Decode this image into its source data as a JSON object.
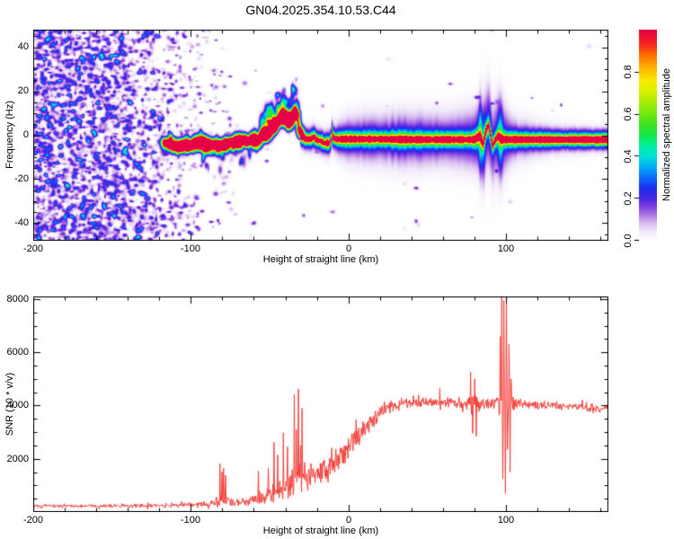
{
  "title": "GN04.2025.354.10.53.C44",
  "colors": {
    "background": "#ffffff",
    "axis": "#000000",
    "snr_line": "#f2403a"
  },
  "top_chart": {
    "ylabel": "Frequency (Hz)",
    "xlabel": "Height of straight line (km)",
    "xtick_labels": [
      "-200",
      "-100",
      "0",
      "100"
    ],
    "ytick_labels": [
      "40",
      "20",
      "0",
      "-20",
      "-40"
    ]
  },
  "colorbar": {
    "label": "Normalized spectral amplitude",
    "tick_labels": [
      "0.0",
      "0.2",
      "0.4",
      "0.6",
      "0.8"
    ]
  },
  "bottom_chart": {
    "ylabel": "SNR (10 * v/v)",
    "xlabel": "Height of straight line (km)",
    "xtick_labels": [
      "-200",
      "-100",
      "0",
      "100"
    ],
    "ytick_labels": [
      "8000",
      "6000",
      "4000",
      "2000"
    ]
  },
  "chart_data": [
    {
      "type": "heatmap",
      "title": "GN04.2025.354.10.53.C44",
      "xlabel": "Height of straight line (km)",
      "ylabel": "Frequency (Hz)",
      "xlim": [
        -200,
        165
      ],
      "ylim": [
        -48,
        48
      ],
      "xticks": [
        -200,
        -100,
        0,
        100
      ],
      "xminor": 20,
      "yticks": [
        -40,
        -20,
        0,
        20,
        40
      ],
      "yminor": 5,
      "grid": false,
      "colorbar": {
        "label": "Normalized spectral amplitude",
        "ticks": [
          0.0,
          0.2,
          0.4,
          0.6,
          0.8
        ],
        "range": [
          0,
          1
        ],
        "position": "right"
      },
      "colormap_stops": [
        [
          0.0,
          "#ffffff"
        ],
        [
          0.04,
          "#f2e9fa"
        ],
        [
          0.08,
          "#d8bef0"
        ],
        [
          0.12,
          "#af78e4"
        ],
        [
          0.16,
          "#803ee0"
        ],
        [
          0.2,
          "#4826e2"
        ],
        [
          0.25,
          "#1c30f0"
        ],
        [
          0.3,
          "#0a6efa"
        ],
        [
          0.35,
          "#00aff5"
        ],
        [
          0.4,
          "#00e1d7"
        ],
        [
          0.45,
          "#00f0a0"
        ],
        [
          0.5,
          "#14e646"
        ],
        [
          0.55,
          "#3ce11e"
        ],
        [
          0.62,
          "#82eb0a"
        ],
        [
          0.7,
          "#d2f000"
        ],
        [
          0.76,
          "#faeb00"
        ],
        [
          0.82,
          "#ffb400"
        ],
        [
          0.88,
          "#ff6e00"
        ],
        [
          0.93,
          "#f52820"
        ],
        [
          1.0,
          "#e60046"
        ]
      ],
      "noise_density": [
        [
          -200,
          0.95
        ],
        [
          -150,
          0.9
        ],
        [
          -135,
          0.7
        ],
        [
          -120,
          0.42
        ],
        [
          -105,
          0.26
        ],
        [
          -92,
          0.13
        ],
        [
          -80,
          0.06
        ],
        [
          -68,
          0.025
        ],
        [
          -55,
          0.012
        ],
        [
          -40,
          0.006
        ],
        [
          165,
          0.003
        ]
      ],
      "trace_center": [
        [
          -120,
          -4
        ],
        [
          -113,
          -3.5
        ],
        [
          -106,
          -5
        ],
        [
          -100,
          -4
        ],
        [
          -94,
          -3
        ],
        [
          -88,
          -4.5
        ],
        [
          -82,
          -5
        ],
        [
          -76,
          -3.5
        ],
        [
          -70,
          -3
        ],
        [
          -64,
          -2.5
        ],
        [
          -58,
          -1.5
        ],
        [
          -54,
          -0.5
        ],
        [
          -50,
          2
        ],
        [
          -46,
          5
        ],
        [
          -43,
          7.5
        ],
        [
          -40,
          9
        ],
        [
          -38,
          5
        ],
        [
          -36,
          9
        ],
        [
          -34,
          12
        ],
        [
          -32.5,
          7
        ],
        [
          -31,
          1.5
        ],
        [
          -30,
          -0.5
        ],
        [
          -27,
          -1.8
        ],
        [
          -24,
          -1.8
        ],
        [
          -22,
          -0.8
        ],
        [
          -20,
          -2.2
        ],
        [
          -17,
          -2.8
        ],
        [
          -15.5,
          -3.6
        ],
        [
          -12,
          -3.6
        ],
        [
          -11,
          -1.8
        ],
        [
          -10.4,
          1.4
        ],
        [
          -9.8,
          -0.8
        ],
        [
          -8,
          -1.8
        ],
        [
          0,
          -1.8
        ],
        [
          20,
          -1.8
        ],
        [
          40,
          -2
        ],
        [
          60,
          -2
        ],
        [
          80,
          -2
        ],
        [
          83.5,
          -0.3
        ],
        [
          85.5,
          -4
        ],
        [
          87.5,
          2.6
        ],
        [
          89,
          4.6
        ],
        [
          90.5,
          -0.8
        ],
        [
          91.5,
          -5
        ],
        [
          93,
          -2.4
        ],
        [
          95,
          -0.4
        ],
        [
          97,
          -1.8
        ],
        [
          100,
          -2
        ],
        [
          120,
          -2
        ],
        [
          140,
          -2
        ],
        [
          165,
          -2
        ]
      ],
      "trace_amp": [
        [
          -121,
          0
        ],
        [
          -116,
          0.3
        ],
        [
          -110,
          0.5
        ],
        [
          -100,
          0.52
        ],
        [
          -90,
          0.55
        ],
        [
          -80,
          0.55
        ],
        [
          -70,
          0.5
        ],
        [
          -60,
          0.52
        ],
        [
          -52,
          0.55
        ],
        [
          -45,
          0.58
        ],
        [
          -38,
          0.55
        ],
        [
          -33,
          0.5
        ],
        [
          -30,
          0.5
        ]
      ],
      "core_sigma_hz": 1.15,
      "mid_sigma_hz": 2.6,
      "mid_amp": 0.45,
      "halo_sigma": [
        [
          -30,
          3.5
        ],
        [
          -20,
          4
        ],
        [
          -10,
          4.5
        ],
        [
          0,
          6.5
        ],
        [
          30,
          7.5
        ],
        [
          60,
          7.5
        ],
        [
          80,
          8.5
        ],
        [
          88,
          11
        ],
        [
          96,
          11
        ],
        [
          105,
          6.5
        ],
        [
          125,
          4.5
        ],
        [
          145,
          3.8
        ],
        [
          165,
          3.2
        ]
      ],
      "halo_amp": [
        [
          -30,
          0.15
        ],
        [
          -15,
          0.13
        ],
        [
          -5,
          0.18
        ],
        [
          0,
          0.2
        ],
        [
          40,
          0.22
        ],
        [
          70,
          0.18
        ],
        [
          84,
          0.26
        ],
        [
          96,
          0.24
        ],
        [
          110,
          0.15
        ],
        [
          140,
          0.11
        ],
        [
          165,
          0.09
        ]
      ]
    },
    {
      "type": "line",
      "xlabel": "Height of straight line (km)",
      "ylabel": "SNR (10 * v/v)",
      "xlim": [
        -200,
        165
      ],
      "ylim": [
        0,
        8100
      ],
      "xticks": [
        -200,
        -100,
        0,
        100
      ],
      "xminor": 20,
      "yticks": [
        2000,
        4000,
        6000,
        8000
      ],
      "yminor": 500,
      "grid": false,
      "line_color": "#f2403a",
      "sample_step": 0.33,
      "base_points": [
        [
          -200,
          230
        ],
        [
          -160,
          235
        ],
        [
          -130,
          240
        ],
        [
          -110,
          255
        ],
        [
          -100,
          280
        ],
        [
          -90,
          300
        ],
        [
          -84,
          340
        ],
        [
          -81,
          520
        ],
        [
          -79,
          560
        ],
        [
          -76,
          420
        ],
        [
          -72,
          360
        ],
        [
          -68,
          380
        ],
        [
          -64,
          420
        ],
        [
          -60,
          480
        ],
        [
          -56,
          560
        ],
        [
          -52,
          620
        ],
        [
          -48,
          700
        ],
        [
          -44,
          800
        ],
        [
          -40,
          950
        ],
        [
          -36,
          1100
        ],
        [
          -33,
          1250
        ],
        [
          -30,
          1350
        ],
        [
          -27,
          1380
        ],
        [
          -24,
          1400
        ],
        [
          -21,
          1450
        ],
        [
          -18,
          1500
        ],
        [
          -15,
          1550
        ],
        [
          -12,
          1650
        ],
        [
          -9,
          1800
        ],
        [
          -6,
          2000
        ],
        [
          -3,
          2200
        ],
        [
          0,
          2400
        ],
        [
          3,
          2650
        ],
        [
          6,
          2850
        ],
        [
          9,
          3050
        ],
        [
          12,
          3250
        ],
        [
          15,
          3450
        ],
        [
          18,
          3600
        ],
        [
          21,
          3750
        ],
        [
          24,
          3850
        ],
        [
          27,
          3950
        ],
        [
          30,
          4000
        ],
        [
          35,
          4050
        ],
        [
          40,
          4080
        ],
        [
          45,
          4100
        ],
        [
          50,
          4120
        ],
        [
          55,
          4130
        ],
        [
          60,
          4130
        ],
        [
          65,
          4120
        ],
        [
          70,
          4110
        ],
        [
          75,
          4100
        ],
        [
          80,
          4090
        ],
        [
          85,
          4080
        ],
        [
          90,
          4080
        ],
        [
          95,
          4090
        ],
        [
          100,
          4150
        ],
        [
          105,
          4080
        ],
        [
          110,
          4050
        ],
        [
          115,
          4040
        ],
        [
          120,
          4030
        ],
        [
          130,
          4000
        ],
        [
          140,
          3960
        ],
        [
          150,
          3920
        ],
        [
          165,
          3870
        ]
      ],
      "sigma_points": [
        [
          -200,
          45
        ],
        [
          -150,
          50
        ],
        [
          -120,
          55
        ],
        [
          -100,
          70
        ],
        [
          -88,
          90
        ],
        [
          -82,
          260
        ],
        [
          -76,
          150
        ],
        [
          -70,
          100
        ],
        [
          -62,
          140
        ],
        [
          -55,
          180
        ],
        [
          -48,
          240
        ],
        [
          -42,
          320
        ],
        [
          -37,
          420
        ],
        [
          -32,
          520
        ],
        [
          -28,
          420
        ],
        [
          -24,
          380
        ],
        [
          -20,
          360
        ],
        [
          -16,
          380
        ],
        [
          -12,
          400
        ],
        [
          -8,
          380
        ],
        [
          -4,
          360
        ],
        [
          0,
          340
        ],
        [
          5,
          330
        ],
        [
          10,
          300
        ],
        [
          15,
          280
        ],
        [
          20,
          240
        ],
        [
          25,
          200
        ],
        [
          30,
          170
        ],
        [
          35,
          150
        ],
        [
          40,
          140
        ],
        [
          50,
          130
        ],
        [
          60,
          130
        ],
        [
          70,
          150
        ],
        [
          76,
          260
        ],
        [
          80,
          280
        ],
        [
          84,
          180
        ],
        [
          88,
          150
        ],
        [
          92,
          170
        ],
        [
          95,
          280
        ],
        [
          97,
          500
        ],
        [
          99,
          650
        ],
        [
          101,
          620
        ],
        [
          103,
          400
        ],
        [
          105,
          220
        ],
        [
          108,
          150
        ],
        [
          112,
          130
        ],
        [
          120,
          120
        ],
        [
          140,
          110
        ],
        [
          165,
          105
        ]
      ],
      "spikes": [
        [
          -81.5,
          1820
        ],
        [
          -80.2,
          1500
        ],
        [
          -79.1,
          1650
        ],
        [
          -77.9,
          1380
        ],
        [
          -57.2,
          1540
        ],
        [
          -50.8,
          1650
        ],
        [
          -47.1,
          2620
        ],
        [
          -44.9,
          2150
        ],
        [
          -41.3,
          2980
        ],
        [
          -38.6,
          2450
        ],
        [
          -34.2,
          4420
        ],
        [
          -33,
          3100
        ],
        [
          -31.8,
          4620
        ],
        [
          -30.5,
          2500
        ],
        [
          -29.4,
          3900
        ],
        [
          33.5,
          4280
        ],
        [
          58.2,
          4660
        ],
        [
          77.6,
          5260
        ],
        [
          78.9,
          2960
        ],
        [
          80.1,
          5000
        ],
        [
          81.2,
          2850
        ],
        [
          96.2,
          6600
        ],
        [
          97.2,
          8100
        ],
        [
          98.0,
          1250
        ],
        [
          98.7,
          7950
        ],
        [
          99.5,
          700
        ],
        [
          100.3,
          8100
        ],
        [
          101.1,
          2350
        ],
        [
          101.8,
          6300
        ],
        [
          102.6,
          1500
        ],
        [
          103.4,
          5000
        ]
      ]
    }
  ]
}
